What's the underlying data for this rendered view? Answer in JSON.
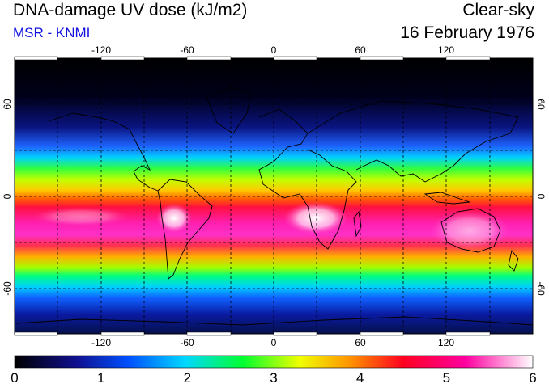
{
  "header": {
    "title": "DNA-damage UV dose (kJ/m2)",
    "subtitle": "MSR - KNMI",
    "condition": "Clear-sky",
    "date": "16 February 1976"
  },
  "map": {
    "longitude_ticks": [
      "-120",
      "-60",
      "0",
      "60",
      "120"
    ],
    "latitude_ticks": [
      "60",
      "0",
      "-60"
    ],
    "grid_lines": true
  },
  "colorbar": {
    "min": 0,
    "max": 6,
    "labels": [
      "0",
      "1",
      "2",
      "3",
      "4",
      "5",
      "6"
    ],
    "colors": [
      "#000000",
      "#1010a0",
      "#0060ff",
      "#00e0ff",
      "#00ff40",
      "#ffff00",
      "#ff8000",
      "#ff0020",
      "#ff00a0",
      "#ffffff"
    ]
  }
}
